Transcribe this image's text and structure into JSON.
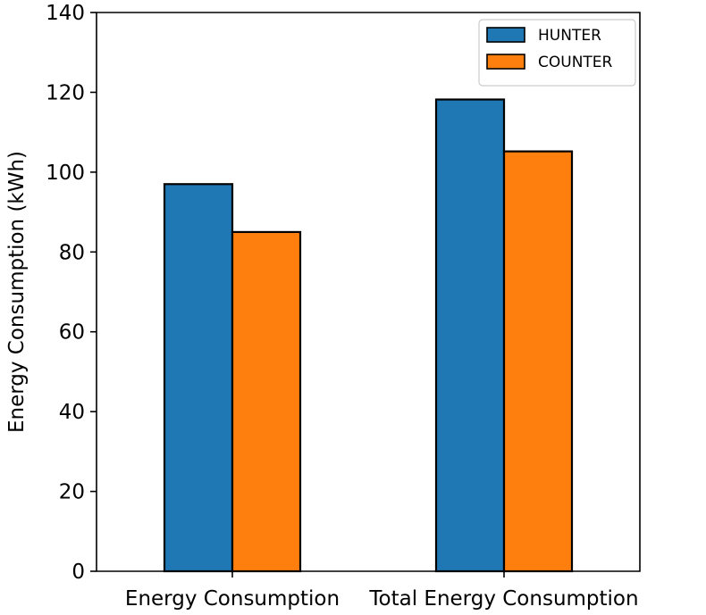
{
  "chart_data": {
    "type": "bar",
    "title": "",
    "xlabel": "",
    "ylabel": "Energy Consumption (kWh)",
    "categories": [
      "Energy Consumption",
      "Total Energy Consumption"
    ],
    "series": [
      {
        "name": "HUNTER",
        "values": [
          97,
          118.2
        ],
        "color": "#1f77b4"
      },
      {
        "name": "COUNTER",
        "values": [
          85,
          105.2
        ],
        "color": "#ff7f0e"
      }
    ],
    "ylim": [
      0,
      140
    ],
    "yticks": [
      0,
      20,
      40,
      60,
      80,
      100,
      120,
      140
    ],
    "grid": false,
    "legend": {
      "position": "top-right",
      "entries": [
        "HUNTER",
        "COUNTER"
      ]
    }
  }
}
